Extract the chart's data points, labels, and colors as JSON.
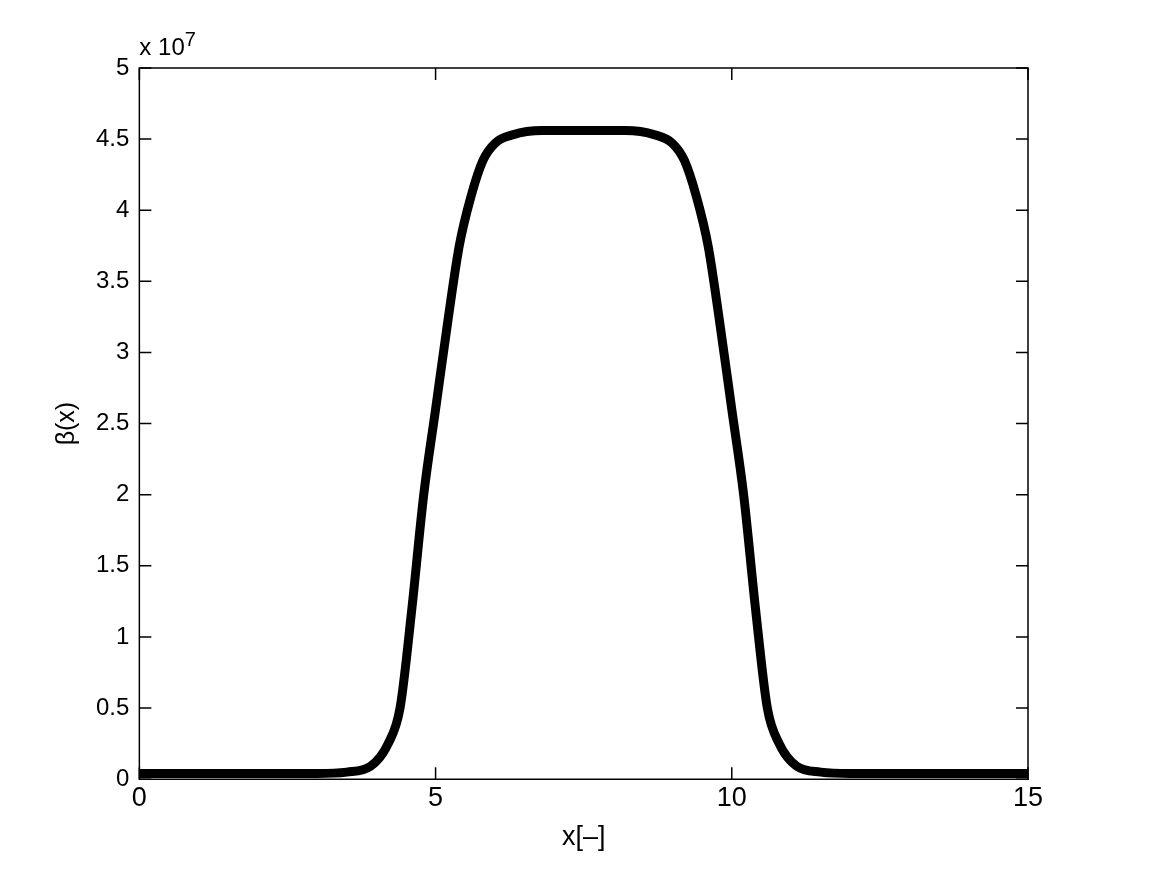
{
  "chart_data": {
    "type": "line",
    "xlabel": "x[–]",
    "ylabel": "β(x)",
    "annotations": [
      "x 10$^{7}$"
    ],
    "series": [
      {
        "color": "#000000",
        "x": [
          0,
          3,
          3.5,
          3.9,
          4.2,
          4.4,
          4.6,
          4.8,
          5.0,
          5.2,
          5.4,
          5.6,
          5.8,
          6.0,
          6.3,
          6.8,
          7.5,
          8.2,
          8.7,
          9.0,
          9.2,
          9.4,
          9.6,
          9.8,
          10.0,
          10.2,
          10.4,
          10.6,
          10.8,
          11.1,
          11.5,
          12,
          15
        ],
        "values": [
          0.04,
          0.04,
          0.05,
          0.09,
          0.25,
          0.5,
          1.2,
          2.0,
          2.6,
          3.2,
          3.75,
          4.1,
          4.35,
          4.47,
          4.53,
          4.56,
          4.56,
          4.56,
          4.53,
          4.47,
          4.35,
          4.1,
          3.75,
          3.2,
          2.6,
          2.0,
          1.2,
          0.5,
          0.25,
          0.09,
          0.05,
          0.04,
          0.04
        ]
      }
    ],
    "xlim": [
      0,
      15
    ],
    "xticks": [
      0,
      5,
      10,
      15
    ],
    "ylim": [
      0,
      5
    ],
    "yticks": [
      0,
      0.5,
      1,
      1.5,
      2,
      2.5,
      3,
      3.5,
      4,
      4.5,
      5
    ],
    "grid": false,
    "legend": false,
    "marker": "none",
    "line_style": "solid"
  }
}
